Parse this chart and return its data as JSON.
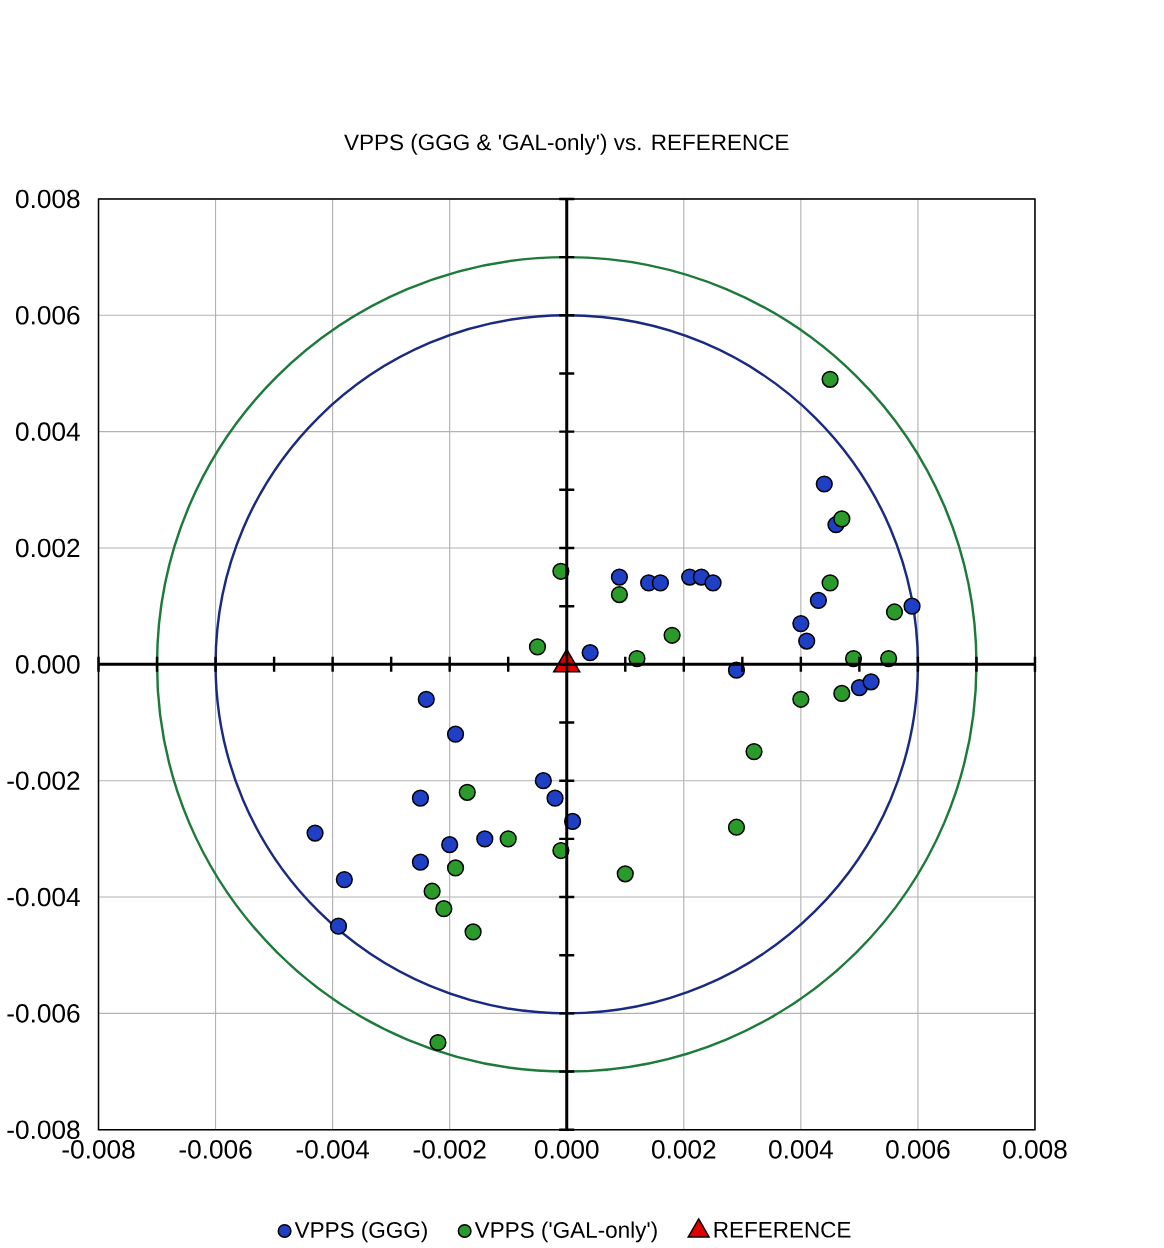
{
  "chart_data": {
    "type": "scatter",
    "title": "VPPS (GGG & 'GAL-only') vs. REFERENCE",
    "xlim": [
      -0.008,
      0.008
    ],
    "ylim": [
      -0.008,
      0.008
    ],
    "xticks": [
      -0.008,
      -0.006,
      -0.004,
      -0.002,
      {
        "value": 0,
        "label": "0.000"
      },
      0.002,
      0.004,
      0.006,
      0.008
    ],
    "yticks": [
      -0.008,
      -0.006,
      -0.004,
      -0.002,
      {
        "value": 0,
        "label": "0.000"
      },
      0.002,
      0.004,
      0.006,
      0.008
    ],
    "grid": true,
    "legend": "bottom",
    "marker": "circle",
    "series": [
      {
        "name": "VPPS (GGG)",
        "color": "#1f3fc4",
        "x": [
          0.0059,
          0.0044,
          0.0046,
          0.0009,
          0.0014,
          0.0016,
          0.0021,
          0.0023,
          0.0025,
          0.0043,
          0.004,
          0.0041,
          0.0004,
          0.0029,
          0.005,
          0.0052,
          -0.0024,
          -0.0019,
          -0.0025,
          -0.0043,
          -0.0038,
          -0.0039,
          -0.002,
          -0.0014,
          -0.0025,
          -0.0004,
          -0.0002,
          0.0001
        ],
        "values": [
          0.001,
          0.0031,
          0.0024,
          0.0015,
          0.0014,
          0.0014,
          0.0015,
          0.0015,
          0.0014,
          0.0011,
          0.0007,
          0.0004,
          0.0002,
          -0.0001,
          -0.0004,
          -0.0003,
          -0.0006,
          -0.0012,
          -0.0023,
          -0.0029,
          -0.0037,
          -0.0045,
          -0.0031,
          -0.003,
          -0.0034,
          -0.002,
          -0.0023,
          -0.0027
        ]
      },
      {
        "name": "VPPS ('GAL-only')",
        "color": "#2a9a2a",
        "x": [
          0.0045,
          0.0047,
          0.0045,
          0.0056,
          -0.0001,
          0.0009,
          0.0018,
          -0.0005,
          0.0012,
          0.0049,
          0.0055,
          0.004,
          0.0047,
          0.0032,
          0.0029,
          -0.0017,
          -0.001,
          -0.0019,
          -0.0023,
          -0.0021,
          -0.0016,
          -0.0001,
          0.001,
          -0.0022
        ],
        "values": [
          0.0049,
          0.0025,
          0.0014,
          0.0009,
          0.0016,
          0.0012,
          0.0005,
          0.0003,
          0.0001,
          0.0001,
          0.0001,
          -0.0006,
          -0.0005,
          -0.0015,
          -0.0028,
          -0.0022,
          -0.003,
          -0.0035,
          -0.0039,
          -0.0042,
          -0.0046,
          -0.0032,
          -0.0036,
          -0.0065
        ]
      },
      {
        "name": "REFERENCE",
        "color": "#e00000",
        "marker": "triangle",
        "x": [
          0
        ],
        "values": [
          0
        ]
      }
    ]
  }
}
